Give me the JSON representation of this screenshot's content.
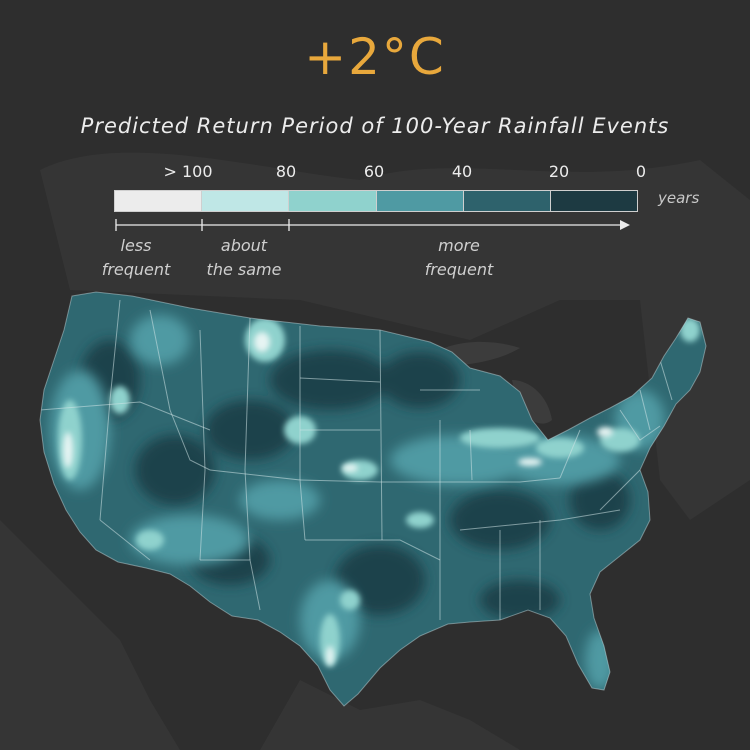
{
  "title": "+2°C",
  "subtitle": "Predicted Return Period of 100-Year Rainfall Events",
  "legend": {
    "tick_labels": [
      "> 100",
      "80",
      "60",
      "40",
      "20",
      "0"
    ],
    "units": "years",
    "swatch_colors": [
      "#ececec",
      "#bfe7e6",
      "#8fd2cd",
      "#4f9aa3",
      "#2e626c",
      "#1d3a42"
    ],
    "categories": [
      {
        "line1": "less",
        "line2": "frequent"
      },
      {
        "line1": "about",
        "line2": "the same"
      },
      {
        "line1": "more",
        "line2": "frequent"
      }
    ]
  },
  "colors": {
    "background": "#2e2e2e",
    "title": "#e8a83c",
    "land_base": "#2f6871",
    "state_lines": "#cfe3e6"
  }
}
